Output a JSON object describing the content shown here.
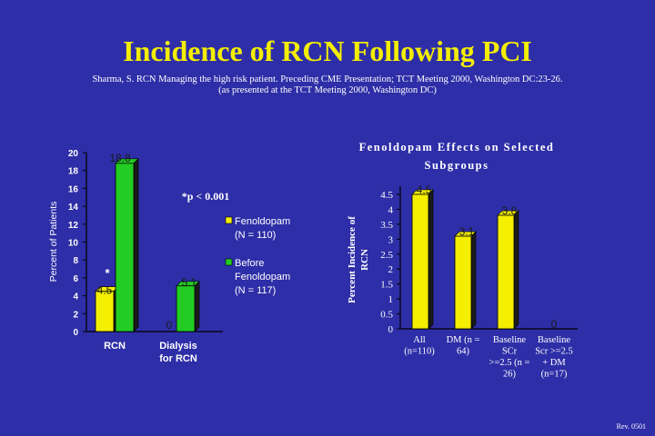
{
  "title": "Incidence of RCN Following PCI",
  "citation": {
    "line1": "Sharma, S. RCN Managing the high risk patient. Preceding CME Presentation; TCT Meeting 2000, Washington DC:23-26.",
    "line2": "(as presented at the TCT Meeting 2000, Washington DC)"
  },
  "footer": "Rev. 0501",
  "colors": {
    "background": "#2e2ea8",
    "title": "#f4ee00",
    "fenoldopam": "#f4ee00",
    "before": "#22cc22"
  },
  "chart_data": [
    {
      "type": "bar",
      "title": "",
      "ylabel": "Percent of Patients",
      "ylim": [
        0,
        20
      ],
      "yticks": [
        "0",
        "2",
        "4",
        "6",
        "8",
        "10",
        "12",
        "14",
        "16",
        "18",
        "20"
      ],
      "categories": [
        "RCN",
        "Dialysis for RCN"
      ],
      "category_labels": [
        [
          "RCN"
        ],
        [
          "Dialysis",
          "for RCN"
        ]
      ],
      "series": [
        {
          "name": "Fenoldopam (N = 110)",
          "legend_lines": [
            "Fenoldopam",
            "(N = 110)"
          ],
          "values": [
            4.5,
            0
          ],
          "labels": [
            "4.5",
            "0"
          ],
          "color": "#f4ee00"
        },
        {
          "name": "Before Fenoldopam (N = 117)",
          "legend_lines": [
            "Before",
            "Fenoldopam",
            "(N = 117)"
          ],
          "values": [
            18.8,
            5.1
          ],
          "labels": [
            "18.8",
            "5.1"
          ],
          "color": "#22cc22"
        }
      ],
      "annotations": {
        "significance": "*p < 0.001",
        "star": "*"
      }
    },
    {
      "type": "bar",
      "title": [
        "Fenoldopam Effects on Selected",
        "Subgroups"
      ],
      "ylabel": [
        "Percent Incidence of",
        "RCN"
      ],
      "ylim": [
        0,
        4.5
      ],
      "yticks": [
        "0",
        "0.5",
        "1",
        "1.5",
        "2",
        "2.5",
        "3",
        "3.5",
        "4",
        "4.5"
      ],
      "categories": [
        "All (n=110)",
        "DM (n = 64)",
        "Baseline SCr >=2.5 (n = 26)",
        "Baseline Scr >=2.5 + DM (n=17)"
      ],
      "category_labels": [
        [
          "All",
          "(n=110)"
        ],
        [
          "DM (n =",
          "64)"
        ],
        [
          "Baseline",
          "SCr",
          ">=2.5 (n =",
          "26)"
        ],
        [
          "Baseline",
          "Scr >=2.5",
          "+ DM",
          "(n=17)"
        ]
      ],
      "values": [
        4.5,
        3.1,
        3.8,
        0
      ],
      "labels": [
        "4.5",
        "3.1",
        "3.8",
        "0"
      ]
    }
  ]
}
